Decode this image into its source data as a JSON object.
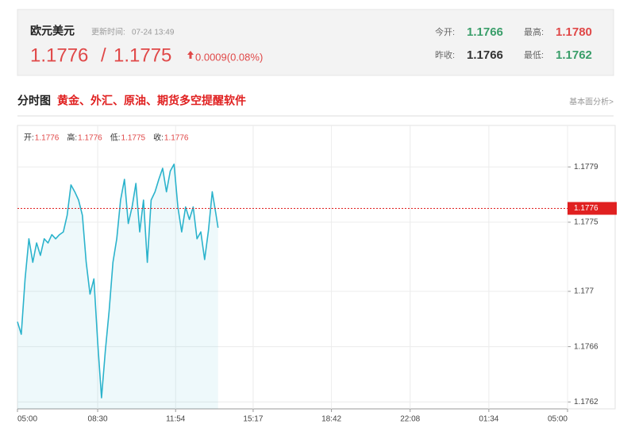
{
  "quote": {
    "name": "欧元美元",
    "update_label": "更新时间:",
    "update_time": "07-24 13:49",
    "bid": "1.1776",
    "separator": "/",
    "ask": "1.1775",
    "change": "0.0009(0.08%)",
    "stats": [
      {
        "label": "今开:",
        "value": "1.1766",
        "color": "#3a9e6a"
      },
      {
        "label": "最高:",
        "value": "1.1780",
        "color": "#e04848"
      },
      {
        "label": "昨收:",
        "value": "1.1766",
        "color": "#333333"
      },
      {
        "label": "最低:",
        "value": "1.1762",
        "color": "#3a9e6a"
      }
    ]
  },
  "section": {
    "title": "分时图",
    "promo": "黄金、外汇、原油、期货多空提醒软件",
    "link": "基本面分析>"
  },
  "chart_data": {
    "type": "area",
    "ohlc": [
      {
        "label": "开:",
        "value": 1.1776
      },
      {
        "label": "高:",
        "value": 1.1776
      },
      {
        "label": "低:",
        "value": 1.1775
      },
      {
        "label": "收:",
        "value": 1.1776
      }
    ],
    "price_line": 1.1776,
    "x": [
      0,
      10,
      20,
      30,
      40,
      50,
      60,
      70,
      80,
      90,
      100,
      110,
      120,
      130,
      140,
      150,
      160,
      170,
      180,
      190,
      200,
      210,
      220,
      230,
      240,
      250,
      260,
      270,
      280,
      290,
      300,
      310,
      320,
      330,
      340,
      350,
      360,
      370,
      380,
      390,
      400,
      410,
      420,
      430,
      440,
      450,
      460,
      470,
      480,
      490,
      500,
      510,
      520,
      525
    ],
    "series": [
      {
        "color": "#2bb3cc",
        "values": [
          1.17678,
          1.17669,
          1.17709,
          1.17738,
          1.17721,
          1.17735,
          1.17726,
          1.17738,
          1.17735,
          1.17741,
          1.17738,
          1.17741,
          1.17743,
          1.17755,
          1.17777,
          1.17772,
          1.17766,
          1.17755,
          1.17721,
          1.17698,
          1.17709,
          1.17663,
          1.17623,
          1.17657,
          1.17686,
          1.17721,
          1.17738,
          1.17766,
          1.17781,
          1.17749,
          1.17761,
          1.17778,
          1.17743,
          1.17766,
          1.17721,
          1.17766,
          1.17772,
          1.17781,
          1.17789,
          1.17772,
          1.17787,
          1.17792,
          1.17761,
          1.17743,
          1.17761,
          1.17752,
          1.17761,
          1.17738,
          1.17743,
          1.17723,
          1.17744,
          1.17772,
          1.17755,
          1.17746
        ]
      }
    ],
    "xlim": [
      0,
      1440
    ],
    "xticks": [
      {
        "value": 0,
        "label": "05:00"
      },
      {
        "value": 210,
        "label": "08:30"
      },
      {
        "value": 414,
        "label": "11:54"
      },
      {
        "value": 617,
        "label": "15:17"
      },
      {
        "value": 822,
        "label": "18:42"
      },
      {
        "value": 1028,
        "label": "22:08"
      },
      {
        "value": 1234,
        "label": "01:34"
      },
      {
        "value": 1440,
        "label": "05:00"
      }
    ],
    "ylim": [
      1.17615,
      1.1782
    ],
    "yticks": [
      1.1762,
      1.1766,
      1.177,
      1.1775,
      1.1779
    ],
    "grid": true
  }
}
